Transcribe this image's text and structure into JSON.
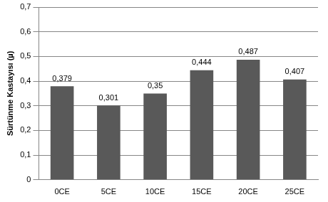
{
  "chart_data": {
    "type": "bar",
    "ylabel": "Sürtünme Kastayısı (µ)",
    "categories": [
      "0CE",
      "5CE",
      "10CE",
      "15CE",
      "20CE",
      "25CE"
    ],
    "values": [
      0.379,
      0.301,
      0.35,
      0.444,
      0.487,
      0.407
    ],
    "value_labels": [
      "0,379",
      "0,301",
      "0,35",
      "0,444",
      "0,487",
      "0,407"
    ],
    "color": "#595959",
    "ylim": [
      0,
      0.7
    ],
    "yticks": [
      0,
      {
        "value": 0.1,
        "label": "0,1"
      },
      {
        "value": 0.2,
        "label": "0,2"
      },
      {
        "value": 0.3,
        "label": "0,3"
      },
      {
        "value": 0.4,
        "label": "0,4"
      },
      {
        "value": 0.5,
        "label": "0,5"
      },
      {
        "value": 0.6,
        "label": "0,6"
      },
      {
        "value": 0.7,
        "label": "0,7"
      }
    ],
    "grid": true,
    "data_labels": true
  }
}
